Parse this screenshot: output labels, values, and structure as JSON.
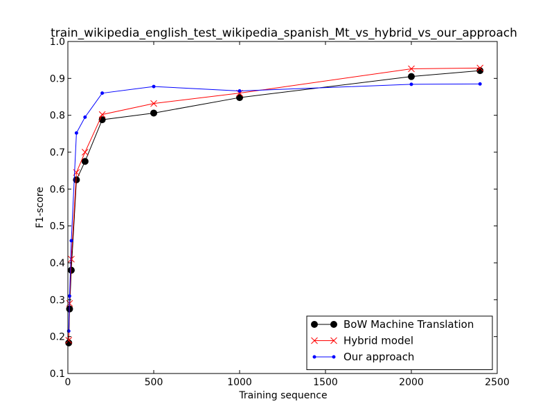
{
  "chart_data": {
    "type": "line",
    "title": "train_wikipedia_english_test_wikipedia_spanish_Mt_vs_hybrid_vs_our_approach",
    "xlabel": "Training sequence",
    "ylabel": "F1-score",
    "xlim": [
      0,
      2500
    ],
    "ylim": [
      0.1,
      1.0
    ],
    "xticks": [
      0,
      500,
      1000,
      1500,
      2000,
      2500
    ],
    "xtick_labels": [
      "0",
      "500",
      "1000",
      "1500",
      "2000",
      "2500"
    ],
    "yticks": [
      0.1,
      0.2,
      0.3,
      0.4,
      0.5,
      0.6,
      0.7,
      0.8,
      0.9,
      1.0
    ],
    "ytick_labels": [
      "0.1",
      "0.2",
      "0.3",
      "0.4",
      "0.5",
      "0.6",
      "0.7",
      "0.8",
      "0.9",
      "1.0"
    ],
    "grid": false,
    "legend_position": "bottom-right",
    "series": [
      {
        "name": "BoW Machine Translation",
        "color": "#000000",
        "marker": "circle",
        "x": [
          5,
          10,
          20,
          50,
          100,
          200,
          500,
          1000,
          2000,
          2400
        ],
        "y": [
          0.183,
          0.275,
          0.38,
          0.625,
          0.675,
          0.788,
          0.806,
          0.848,
          0.905,
          0.921
        ]
      },
      {
        "name": "Hybrid model",
        "color": "#ff0000",
        "marker": "x",
        "x": [
          5,
          10,
          20,
          50,
          100,
          200,
          500,
          1000,
          2000,
          2400
        ],
        "y": [
          0.19,
          0.29,
          0.41,
          0.645,
          0.7,
          0.802,
          0.832,
          0.86,
          0.926,
          0.928
        ]
      },
      {
        "name": "Our approach",
        "color": "#0000ff",
        "marker": "dot",
        "x": [
          5,
          10,
          20,
          50,
          100,
          200,
          500,
          1000,
          2000,
          2400
        ],
        "y": [
          0.215,
          0.31,
          0.46,
          0.752,
          0.795,
          0.86,
          0.878,
          0.866,
          0.884,
          0.885
        ]
      }
    ]
  }
}
